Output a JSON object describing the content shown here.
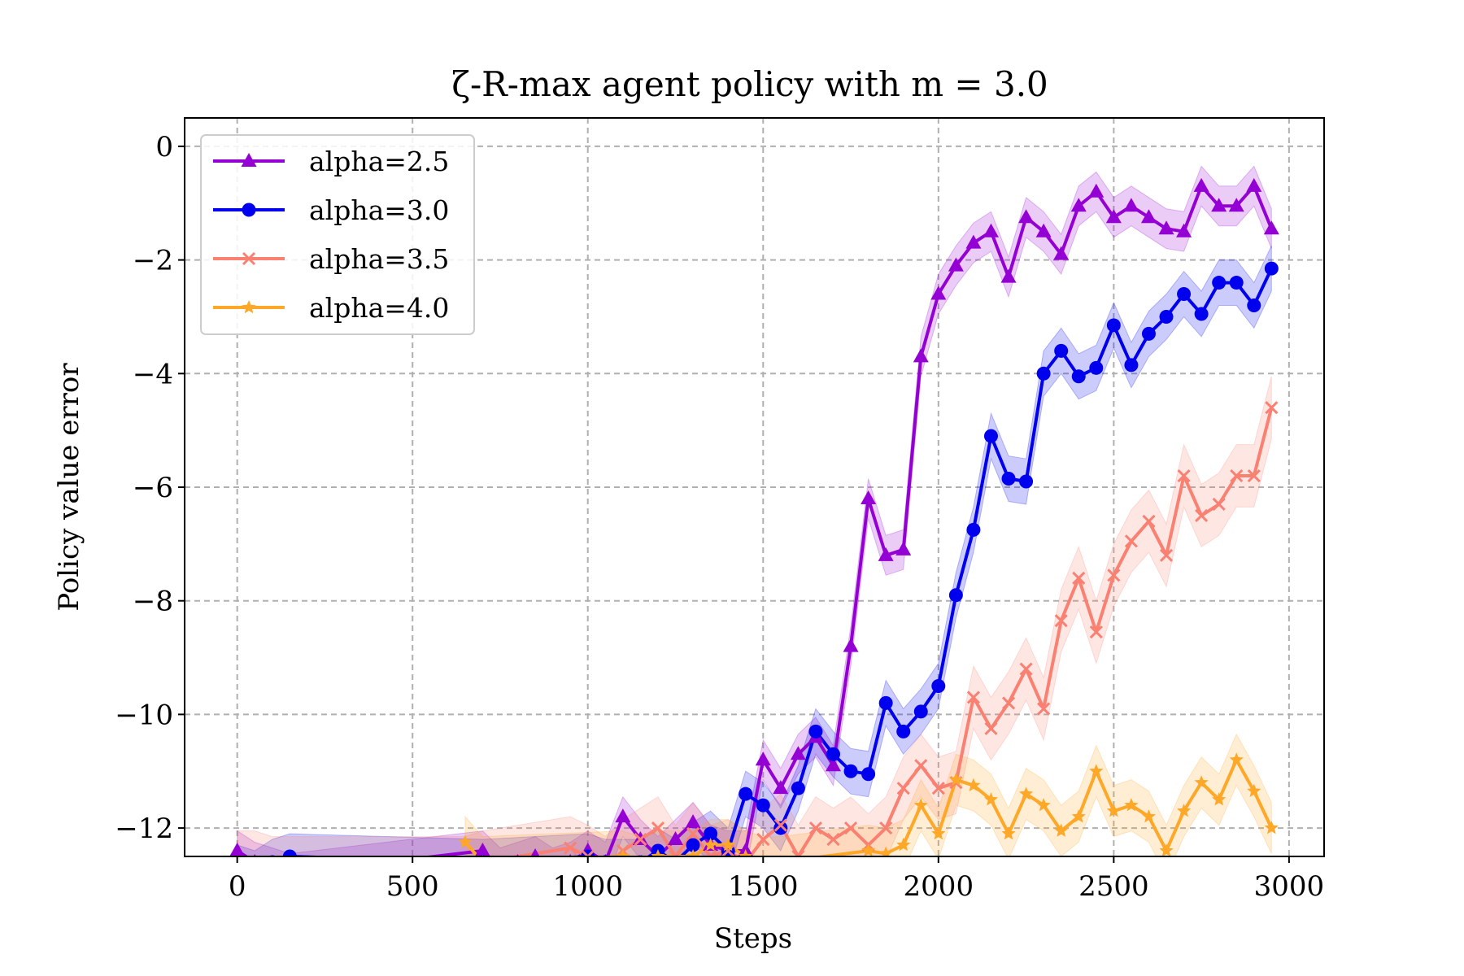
{
  "chart_data": {
    "type": "line",
    "title": "ζ-R-max agent policy with m = 3.0",
    "xlabel": "Steps",
    "ylabel": "Policy value error",
    "xlim": [
      -150,
      3100
    ],
    "ylim": [
      -12.5,
      0.5
    ],
    "xticks": [
      0,
      500,
      1000,
      1500,
      2000,
      2500,
      3000
    ],
    "xtick_labels": [
      "0",
      "500",
      "1000",
      "1500",
      "2000",
      "2500",
      "3000"
    ],
    "yticks": [
      0,
      -2,
      -4,
      -6,
      -8,
      -10,
      -12
    ],
    "ytick_labels": [
      "0",
      "−2",
      "−4",
      "−6",
      "−8",
      "−10",
      "−12"
    ],
    "grid": true,
    "legend_position": "top-left",
    "series": [
      {
        "name": "alpha=2.5",
        "color": "#9400D3",
        "marker": "triangle",
        "band_width": 0.35,
        "points": [
          [
            0,
            -12.4
          ],
          [
            50,
            -12.6
          ],
          [
            100,
            -12.7
          ],
          [
            150,
            -12.8
          ],
          [
            700,
            -12.4
          ],
          [
            750,
            -12.7
          ],
          [
            800,
            -12.6
          ],
          [
            850,
            -12.5
          ],
          [
            900,
            -12.7
          ],
          [
            950,
            -12.6
          ],
          [
            1000,
            -12.4
          ],
          [
            1050,
            -12.6
          ],
          [
            1100,
            -11.8
          ],
          [
            1150,
            -12.2
          ],
          [
            1200,
            -12.5
          ],
          [
            1250,
            -12.2
          ],
          [
            1300,
            -11.9
          ],
          [
            1350,
            -12.3
          ],
          [
            1400,
            -12.4
          ],
          [
            1450,
            -12.4
          ],
          [
            1500,
            -10.8
          ],
          [
            1550,
            -11.3
          ],
          [
            1600,
            -10.7
          ],
          [
            1650,
            -10.4
          ],
          [
            1700,
            -10.9
          ],
          [
            1750,
            -8.8
          ],
          [
            1800,
            -6.2
          ],
          [
            1850,
            -7.2
          ],
          [
            1900,
            -7.1
          ],
          [
            1950,
            -3.7
          ],
          [
            2000,
            -2.6
          ],
          [
            2050,
            -2.1
          ],
          [
            2100,
            -1.7
          ],
          [
            2150,
            -1.5
          ],
          [
            2200,
            -2.3
          ],
          [
            2250,
            -1.25
          ],
          [
            2300,
            -1.5
          ],
          [
            2350,
            -1.9
          ],
          [
            2400,
            -1.05
          ],
          [
            2450,
            -0.8
          ],
          [
            2500,
            -1.25
          ],
          [
            2550,
            -1.05
          ],
          [
            2600,
            -1.25
          ],
          [
            2650,
            -1.45
          ],
          [
            2700,
            -1.5
          ],
          [
            2750,
            -0.7
          ],
          [
            2800,
            -1.05
          ],
          [
            2850,
            -1.05
          ],
          [
            2900,
            -0.7
          ],
          [
            2950,
            -1.45
          ]
        ]
      },
      {
        "name": "alpha=3.0",
        "color": "#0000EE",
        "marker": "circle",
        "band_width": 0.4,
        "points": [
          [
            0,
            -12.7
          ],
          [
            50,
            -12.8
          ],
          [
            100,
            -12.6
          ],
          [
            150,
            -12.5
          ],
          [
            700,
            -12.6
          ],
          [
            1000,
            -12.5
          ],
          [
            1050,
            -12.6
          ],
          [
            1150,
            -12.6
          ],
          [
            1200,
            -12.4
          ],
          [
            1250,
            -12.6
          ],
          [
            1300,
            -12.3
          ],
          [
            1350,
            -12.1
          ],
          [
            1400,
            -12.4
          ],
          [
            1450,
            -11.4
          ],
          [
            1500,
            -11.6
          ],
          [
            1550,
            -12.0
          ],
          [
            1600,
            -11.3
          ],
          [
            1650,
            -10.3
          ],
          [
            1700,
            -10.7
          ],
          [
            1750,
            -11.0
          ],
          [
            1800,
            -11.05
          ],
          [
            1850,
            -9.8
          ],
          [
            1900,
            -10.3
          ],
          [
            1950,
            -9.95
          ],
          [
            2000,
            -9.5
          ],
          [
            2050,
            -7.9
          ],
          [
            2100,
            -6.75
          ],
          [
            2150,
            -5.1
          ],
          [
            2200,
            -5.85
          ],
          [
            2250,
            -5.9
          ],
          [
            2300,
            -4.0
          ],
          [
            2350,
            -3.6
          ],
          [
            2400,
            -4.05
          ],
          [
            2450,
            -3.9
          ],
          [
            2500,
            -3.15
          ],
          [
            2550,
            -3.85
          ],
          [
            2600,
            -3.3
          ],
          [
            2650,
            -3.0
          ],
          [
            2700,
            -2.6
          ],
          [
            2750,
            -2.95
          ],
          [
            2800,
            -2.4
          ],
          [
            2850,
            -2.4
          ],
          [
            2900,
            -2.8
          ],
          [
            2950,
            -2.15
          ]
        ]
      },
      {
        "name": "alpha=3.5",
        "color": "#FA8072",
        "marker": "x",
        "band_width": 0.55,
        "points": [
          [
            0,
            -12.6
          ],
          [
            50,
            -12.6
          ],
          [
            100,
            -12.7
          ],
          [
            650,
            -12.7
          ],
          [
            700,
            -12.6
          ],
          [
            950,
            -12.35
          ],
          [
            1000,
            -12.5
          ],
          [
            1050,
            -12.7
          ],
          [
            1100,
            -12.4
          ],
          [
            1150,
            -12.2
          ],
          [
            1200,
            -12.0
          ],
          [
            1250,
            -12.5
          ],
          [
            1300,
            -12.1
          ],
          [
            1350,
            -12.5
          ],
          [
            1400,
            -12.4
          ],
          [
            1450,
            -12.6
          ],
          [
            1500,
            -12.2
          ],
          [
            1550,
            -11.95
          ],
          [
            1600,
            -12.5
          ],
          [
            1650,
            -12.0
          ],
          [
            1700,
            -12.2
          ],
          [
            1750,
            -12.0
          ],
          [
            1800,
            -12.3
          ],
          [
            1850,
            -12.0
          ],
          [
            1900,
            -11.3
          ],
          [
            1950,
            -10.9
          ],
          [
            2000,
            -11.3
          ],
          [
            2050,
            -11.2
          ],
          [
            2100,
            -9.7
          ],
          [
            2150,
            -10.25
          ],
          [
            2200,
            -9.8
          ],
          [
            2250,
            -9.2
          ],
          [
            2300,
            -9.9
          ],
          [
            2350,
            -8.35
          ],
          [
            2400,
            -7.6
          ],
          [
            2450,
            -8.55
          ],
          [
            2500,
            -7.55
          ],
          [
            2550,
            -6.95
          ],
          [
            2600,
            -6.6
          ],
          [
            2650,
            -7.2
          ],
          [
            2700,
            -5.8
          ],
          [
            2750,
            -6.5
          ],
          [
            2800,
            -6.3
          ],
          [
            2850,
            -5.8
          ],
          [
            2900,
            -5.8
          ],
          [
            2950,
            -4.6
          ]
        ]
      },
      {
        "name": "alpha=4.0",
        "color": "#FFA726",
        "marker": "star",
        "band_width": 0.45,
        "points": [
          [
            650,
            -12.25
          ],
          [
            700,
            -12.6
          ],
          [
            1100,
            -12.5
          ],
          [
            1150,
            -12.6
          ],
          [
            1200,
            -12.5
          ],
          [
            1300,
            -12.5
          ],
          [
            1350,
            -12.3
          ],
          [
            1400,
            -12.3
          ],
          [
            1450,
            -12.5
          ],
          [
            1500,
            -12.6
          ],
          [
            1550,
            -12.6
          ],
          [
            1800,
            -12.4
          ],
          [
            1850,
            -12.45
          ],
          [
            1900,
            -12.3
          ],
          [
            1950,
            -11.6
          ],
          [
            2000,
            -12.1
          ],
          [
            2050,
            -11.15
          ],
          [
            2100,
            -11.25
          ],
          [
            2150,
            -11.5
          ],
          [
            2200,
            -12.1
          ],
          [
            2250,
            -11.4
          ],
          [
            2300,
            -11.6
          ],
          [
            2350,
            -12.05
          ],
          [
            2400,
            -11.8
          ],
          [
            2450,
            -11.0
          ],
          [
            2500,
            -11.7
          ],
          [
            2550,
            -11.6
          ],
          [
            2600,
            -11.8
          ],
          [
            2650,
            -12.4
          ],
          [
            2700,
            -11.7
          ],
          [
            2750,
            -11.2
          ],
          [
            2800,
            -11.5
          ],
          [
            2850,
            -10.8
          ],
          [
            2900,
            -11.35
          ],
          [
            2950,
            -12.0
          ]
        ]
      }
    ]
  }
}
